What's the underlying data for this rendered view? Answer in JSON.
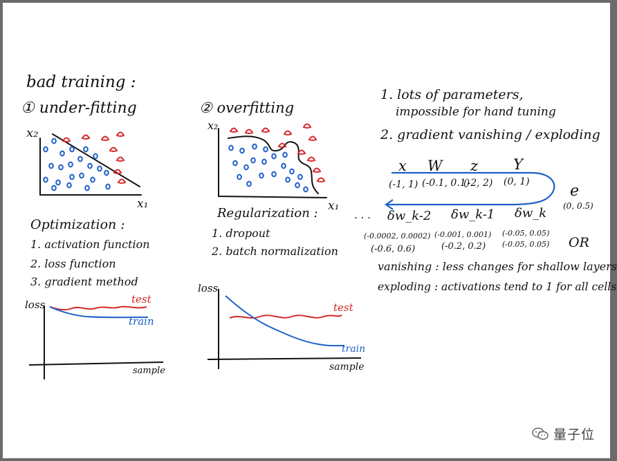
{
  "left": {
    "heading": "bad training :",
    "underfitting": "① under-fitting",
    "x2": "x₂",
    "x1": "x₁",
    "optimization": {
      "title": "Optimization :",
      "items": [
        "1. activation function",
        "2. loss function",
        "3. gradient method"
      ]
    },
    "plot": {
      "ylabel": "loss",
      "xlabel": "sample",
      "test": "test",
      "train": "train"
    }
  },
  "middle": {
    "overfitting": "② overfitting",
    "x2": "x₂",
    "x1": "x₁",
    "regularization": {
      "title": "Regularization :",
      "items": [
        "1. dropout",
        "2. batch normalization"
      ]
    },
    "plot": {
      "ylabel": "loss",
      "xlabel": "sample",
      "test": "test",
      "train": "train"
    }
  },
  "right": {
    "line1a": "1. lots of parameters,",
    "line1b": "impossible for hand tuning",
    "line2": "2. gradient vanishing / exploding",
    "vars": [
      "x",
      "W",
      "z",
      "Y"
    ],
    "ranges": [
      "(-1, 1)",
      "(-0.1, 0.1)",
      "(-2, 2)",
      "(0, 1)"
    ],
    "e_label": "e",
    "e_range": "(0, 0.5)",
    "dots": "· · ·",
    "deltas": [
      "δw_k-2",
      "δw_k-1",
      "δw_k"
    ],
    "delta_ranges_a": [
      "(-0.0002, 0.0002)",
      "(-0.001, 0.001)",
      "(-0.05, 0.05)"
    ],
    "delta_ranges_b": [
      "(-0.6, 0.6)",
      "(-0.2, 0.2)",
      "(-0.05, 0.05)"
    ],
    "or": "OR",
    "vanishing": "vanishing : less changes for shallow layers",
    "exploding": "exploding : activations tend to 1 for all cells"
  },
  "watermark": "量子位",
  "colors": {
    "ink": "#111111",
    "red": "#d8262a",
    "blue": "#1e5fc9",
    "frame": "#6b6b6b"
  }
}
